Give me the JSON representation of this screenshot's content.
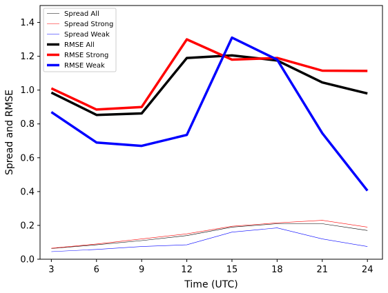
{
  "chart_data": {
    "type": "line",
    "title": "",
    "xlabel": "Time (UTC)",
    "ylabel": "Spread and RMSE",
    "x": [
      3,
      6,
      9,
      12,
      15,
      18,
      21,
      24
    ],
    "x_tick_labels": [
      "3",
      "6",
      "9",
      "12",
      "15",
      "18",
      "21",
      "24"
    ],
    "xlim": [
      2.25,
      25.0
    ],
    "ylim": [
      0.0,
      1.5
    ],
    "y_ticks": [
      0.0,
      0.2,
      0.4,
      0.6,
      0.8,
      1.0,
      1.2,
      1.4
    ],
    "y_tick_labels": [
      "0.0",
      "0.2",
      "0.4",
      "0.6",
      "0.8",
      "1.0",
      "1.2",
      "1.4"
    ],
    "grid": false,
    "legend_position": "top-left",
    "series": [
      {
        "name": "Spread All",
        "color": "#000000",
        "width": "thin",
        "values": [
          0.063,
          0.085,
          0.11,
          0.14,
          0.19,
          0.21,
          0.21,
          0.17
        ]
      },
      {
        "name": "Spread Strong",
        "color": "#ff0000",
        "width": "thin",
        "values": [
          0.065,
          0.09,
          0.12,
          0.15,
          0.195,
          0.215,
          0.23,
          0.19
        ]
      },
      {
        "name": "Spread Weak",
        "color": "#0000ff",
        "width": "thin",
        "values": [
          0.045,
          0.058,
          0.075,
          0.085,
          0.16,
          0.185,
          0.12,
          0.075
        ]
      },
      {
        "name": "RMSE All",
        "color": "#000000",
        "width": "thick",
        "values": [
          0.985,
          0.853,
          0.862,
          1.19,
          1.205,
          1.175,
          1.045,
          0.98
        ]
      },
      {
        "name": "RMSE Strong",
        "color": "#ff0000",
        "width": "thick",
        "values": [
          1.01,
          0.885,
          0.9,
          1.3,
          1.18,
          1.19,
          1.115,
          1.113
        ]
      },
      {
        "name": "RMSE Weak",
        "color": "#0000ff",
        "width": "thick",
        "values": [
          0.87,
          0.69,
          0.67,
          0.735,
          1.31,
          1.18,
          0.745,
          0.405
        ]
      }
    ]
  }
}
